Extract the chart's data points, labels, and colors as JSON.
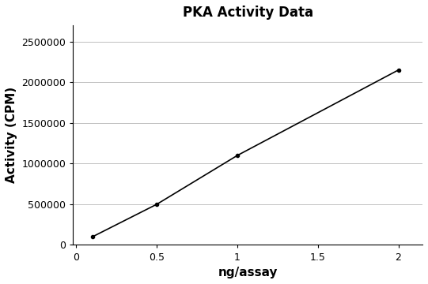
{
  "title": "PKA Activity Data",
  "xlabel": "ng/assay",
  "ylabel": "Activity (CPM)",
  "x_data": [
    0.1,
    0.5,
    1.0,
    2.0
  ],
  "y_data": [
    100000,
    500000,
    1100000,
    2150000
  ],
  "line_color": "#000000",
  "marker": "o",
  "marker_size": 3,
  "line_width": 1.2,
  "xlim": [
    -0.02,
    2.15
  ],
  "ylim": [
    0,
    2700000
  ],
  "xticks": [
    0,
    0.5,
    1.0,
    1.5,
    2.0
  ],
  "xtick_labels": [
    "0",
    "0.5",
    "1",
    "1.5",
    "2"
  ],
  "yticks": [
    0,
    500000,
    1000000,
    1500000,
    2000000,
    2500000
  ],
  "grid_color": "#c0c0c0",
  "grid_linestyle": "-",
  "grid_linewidth": 0.7,
  "background_color": "#ffffff",
  "title_fontsize": 12,
  "label_fontsize": 11,
  "tick_fontsize": 9,
  "title_fontweight": "bold",
  "label_fontweight": "bold"
}
